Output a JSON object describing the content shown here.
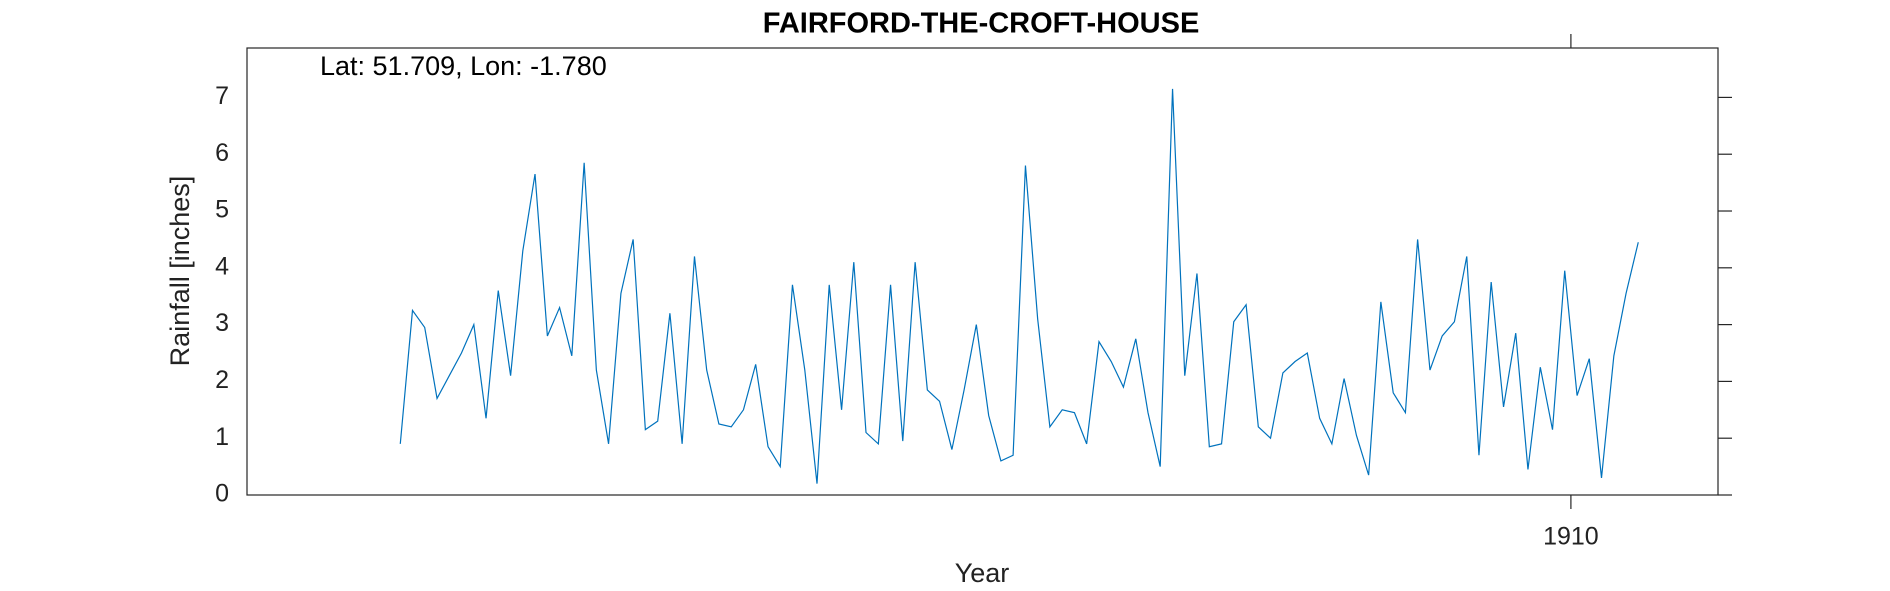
{
  "chart_data": {
    "type": "line",
    "title": "FAIRFORD-THE-CROFT-HOUSE",
    "annotation": "Lat: 51.709, Lon: -1.780",
    "x_label": "Year",
    "y_label": "Rainfall [inches]",
    "x": [
      1902.042,
      1902.125,
      1902.208,
      1902.292,
      1902.375,
      1902.458,
      1902.542,
      1902.625,
      1902.708,
      1902.792,
      1902.875,
      1902.958,
      1903.042,
      1903.125,
      1903.208,
      1903.292,
      1903.375,
      1903.458,
      1903.542,
      1903.625,
      1903.708,
      1903.792,
      1903.875,
      1903.958,
      1904.042,
      1904.125,
      1904.208,
      1904.292,
      1904.375,
      1904.458,
      1904.542,
      1904.625,
      1904.708,
      1904.792,
      1904.875,
      1904.958,
      1905.042,
      1905.125,
      1905.208,
      1905.292,
      1905.375,
      1905.458,
      1905.542,
      1905.625,
      1905.708,
      1905.792,
      1905.875,
      1905.958,
      1906.042,
      1906.125,
      1906.208,
      1906.292,
      1906.375,
      1906.458,
      1906.542,
      1906.625,
      1906.708,
      1906.792,
      1906.875,
      1906.958,
      1907.042,
      1907.125,
      1907.208,
      1907.292,
      1907.375,
      1907.458,
      1907.542,
      1907.625,
      1907.708,
      1907.792,
      1907.875,
      1907.958,
      1908.042,
      1908.125,
      1908.208,
      1908.292,
      1908.375,
      1908.458,
      1908.542,
      1908.625,
      1908.708,
      1908.792,
      1908.875,
      1908.958,
      1909.042,
      1909.125,
      1909.208,
      1909.292,
      1909.375,
      1909.458,
      1909.542,
      1909.625,
      1909.708,
      1909.792,
      1909.875,
      1909.958,
      1910.042,
      1910.125,
      1910.208,
      1910.292,
      1910.375,
      1910.458
    ],
    "series": [
      {
        "name": "Rainfall",
        "color": "#0072bd",
        "values": [
          0.9,
          3.25,
          2.95,
          1.7,
          2.1,
          2.5,
          3.0,
          1.35,
          3.6,
          2.1,
          4.3,
          5.65,
          2.8,
          3.3,
          2.45,
          5.85,
          2.2,
          0.9,
          3.55,
          4.5,
          1.15,
          1.3,
          3.2,
          0.9,
          4.2,
          2.2,
          1.25,
          1.2,
          1.5,
          2.3,
          0.85,
          0.5,
          3.7,
          2.2,
          0.2,
          3.7,
          1.5,
          4.1,
          1.1,
          0.9,
          3.7,
          0.95,
          4.1,
          1.85,
          1.65,
          0.8,
          1.85,
          3.0,
          1.4,
          0.6,
          0.7,
          5.8,
          3.1,
          1.2,
          1.5,
          1.45,
          0.9,
          2.7,
          2.35,
          1.9,
          2.75,
          1.45,
          0.5,
          7.15,
          2.1,
          3.9,
          0.85,
          0.9,
          3.05,
          3.35,
          1.2,
          1.0,
          2.15,
          2.35,
          2.5,
          1.35,
          0.9,
          2.05,
          1.05,
          0.35,
          3.4,
          1.8,
          1.45,
          4.5,
          2.2,
          2.8,
          3.05,
          4.2,
          0.7,
          3.75,
          1.55,
          2.85,
          0.45,
          2.25,
          1.15,
          3.95,
          1.75,
          2.4,
          0.3,
          2.45,
          3.55,
          4.45
        ]
      }
    ],
    "xlim": [
      1901,
      1911
    ],
    "xticks": [
      1910
    ],
    "ylim": [
      0,
      7.87
    ],
    "yticks": [
      0,
      1,
      2,
      3,
      4,
      5,
      6,
      7
    ],
    "grid": false
  }
}
